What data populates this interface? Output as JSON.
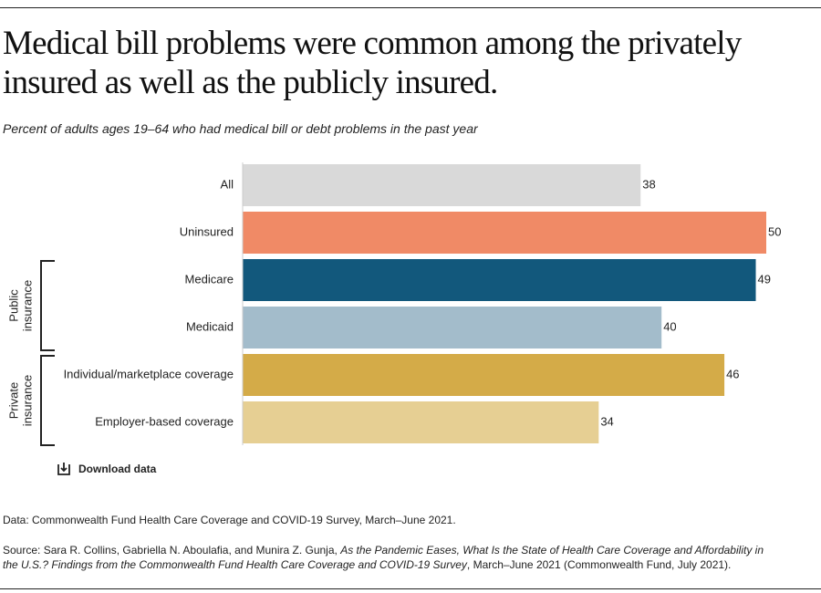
{
  "chart_data": {
    "type": "bar",
    "orientation": "horizontal",
    "title": "Medical bill problems were common among the privately insured as well as the publicly insured.",
    "subtitle": "Percent of adults ages 19–64 who had medical bill or debt problems in the past year",
    "categories": [
      "All",
      "Uninsured",
      "Medicare",
      "Medicaid",
      "Individual/marketplace coverage",
      "Employer-based coverage"
    ],
    "values": [
      38,
      50,
      49,
      40,
      46,
      34
    ],
    "colors": [
      "#d9d9d9",
      "#f08a66",
      "#12587c",
      "#a3bccb",
      "#d4ab48",
      "#e6cf93"
    ],
    "xlim": [
      0,
      50
    ],
    "groups": [
      {
        "label": "Public insurance",
        "categories": [
          "Medicare",
          "Medicaid"
        ]
      },
      {
        "label": "Private insurance",
        "categories": [
          "Individual/marketplace coverage",
          "Employer-based coverage"
        ]
      }
    ],
    "download": "Download data",
    "data_note": "Data: Commonwealth Fund Health Care Coverage and COVID-19 Survey, March–June 2021.",
    "source": {
      "prefix": "Source: Sara R. Collins, Gabriella N. Aboulafia, and Munira Z. Gunja, ",
      "title": "As the Pandemic Eases, What Is the State of Health Care Coverage and Affordability in the U.S.? Findings from the Commonwealth Fund Health Care Coverage and COVID-19 Survey",
      "suffix": ", March–June 2021 (Commonwealth Fund, July 2021)."
    }
  }
}
